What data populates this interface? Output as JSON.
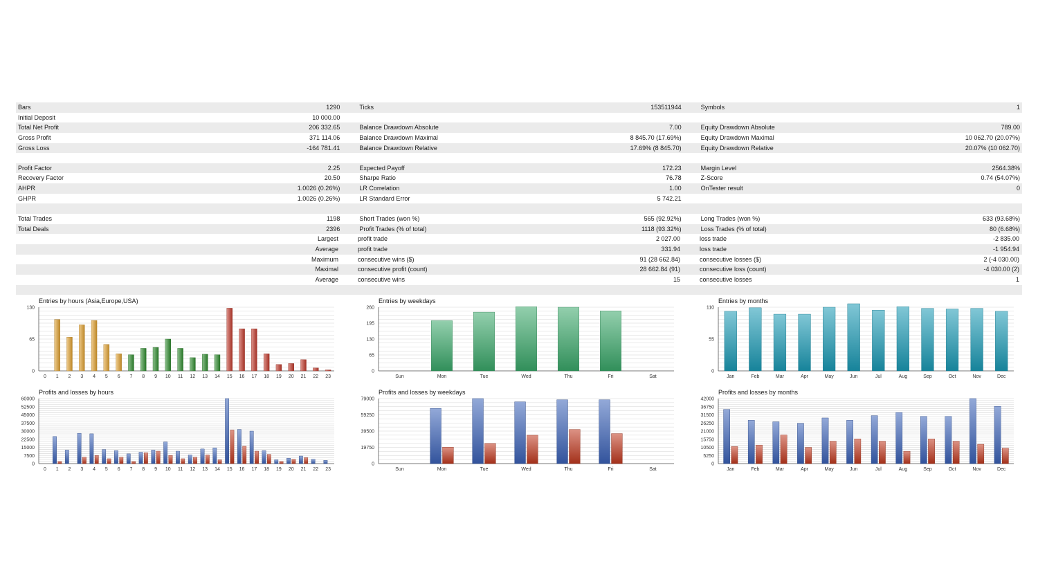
{
  "stats": [
    [
      [
        "Bars",
        "1290"
      ],
      [
        "Ticks",
        "153511944"
      ],
      [
        "Symbols",
        "1"
      ]
    ],
    [
      [
        "Initial Deposit",
        "10 000.00"
      ],
      [
        "",
        ""
      ],
      [
        "",
        ""
      ]
    ],
    [
      [
        "Total Net Profit",
        "206 332.65"
      ],
      [
        "Balance Drawdown Absolute",
        "7.00"
      ],
      [
        "Equity Drawdown Absolute",
        "789.00"
      ]
    ],
    [
      [
        "Gross Profit",
        "371 114.06"
      ],
      [
        "Balance Drawdown Maximal",
        "8 845.70 (17.69%)"
      ],
      [
        "Equity Drawdown Maximal",
        "10 062.70 (20.07%)"
      ]
    ],
    [
      [
        "Gross Loss",
        "-164 781.41"
      ],
      [
        "Balance Drawdown Relative",
        "17.69% (8 845.70)"
      ],
      [
        "Equity Drawdown Relative",
        "20.07% (10 062.70)"
      ]
    ],
    [
      [
        "",
        ""
      ],
      [
        "",
        ""
      ],
      [
        "",
        ""
      ]
    ],
    [
      [
        "Profit Factor",
        "2.25"
      ],
      [
        "Expected Payoff",
        "172.23"
      ],
      [
        "Margin Level",
        "2564.38%"
      ]
    ],
    [
      [
        "Recovery Factor",
        "20.50"
      ],
      [
        "Sharpe Ratio",
        "76.78"
      ],
      [
        "Z-Score",
        "0.74 (54.07%)"
      ]
    ],
    [
      [
        "AHPR",
        "1.0026 (0.26%)"
      ],
      [
        "LR Correlation",
        "1.00"
      ],
      [
        "OnTester result",
        "0"
      ]
    ],
    [
      [
        "GHPR",
        "1.0026 (0.26%)"
      ],
      [
        "LR Standard Error",
        "5 742.21"
      ],
      [
        "",
        ""
      ]
    ],
    [
      [
        "",
        ""
      ],
      [
        "",
        ""
      ],
      [
        "",
        ""
      ]
    ],
    [
      [
        "Total Trades",
        "1198"
      ],
      [
        "Short Trades (won %)",
        "565 (92.92%)"
      ],
      [
        "Long Trades (won %)",
        "633 (93.68%)"
      ]
    ],
    [
      [
        "Total Deals",
        "2396"
      ],
      [
        "Profit Trades (% of total)",
        "1118 (93.32%)"
      ],
      [
        "Loss Trades (% of total)",
        "80 (6.68%)"
      ]
    ],
    [
      [
        "",
        "Largest"
      ],
      [
        "profit trade",
        "2 027.00"
      ],
      [
        "loss trade",
        "-2 835.00"
      ]
    ],
    [
      [
        "",
        "Average"
      ],
      [
        "profit trade",
        "331.94"
      ],
      [
        "loss trade",
        "-1 954.94"
      ]
    ],
    [
      [
        "",
        "Maximum"
      ],
      [
        "consecutive wins ($)",
        "91 (28 662.84)"
      ],
      [
        "consecutive losses ($)",
        "2 (-4 030.00)"
      ]
    ],
    [
      [
        "",
        "Maximal"
      ],
      [
        "consecutive profit (count)",
        "28 662.84 (91)"
      ],
      [
        "consecutive loss (count)",
        "-4 030.00 (2)"
      ]
    ],
    [
      [
        "",
        "Average"
      ],
      [
        "consecutive wins",
        "15"
      ],
      [
        "consecutive losses",
        "1"
      ]
    ],
    [
      [
        "",
        ""
      ],
      [
        "",
        ""
      ],
      [
        "",
        ""
      ]
    ]
  ],
  "colors": {
    "row_alt": "#ebebeb",
    "hours_asia": "#e0a030",
    "hours_europe": "#2e8b2e",
    "hours_usa": "#c0392b",
    "weekdays": "#3aa86a",
    "months": "#1a9ab5",
    "profit": "#3b62b8",
    "loss": "#c0391f"
  },
  "chart_data": [
    {
      "id": "entries_hours",
      "type": "bar",
      "title": "Entries by hours (Asia,Europe,USA)",
      "categories": [
        "0",
        "1",
        "2",
        "3",
        "4",
        "5",
        "6",
        "7",
        "8",
        "9",
        "10",
        "11",
        "12",
        "13",
        "14",
        "15",
        "16",
        "17",
        "18",
        "19",
        "20",
        "21",
        "22",
        "23"
      ],
      "values": [
        0,
        105,
        69,
        94,
        103,
        54,
        35,
        33,
        46,
        48,
        65,
        46,
        27,
        34,
        33,
        128,
        86,
        86,
        35,
        13,
        15,
        23,
        6,
        2
      ],
      "ylim": [
        0,
        130
      ],
      "yticks": [
        "0",
        "65",
        "130"
      ]
    },
    {
      "id": "entries_weekdays",
      "type": "bar",
      "title": "Entries by weekdays",
      "categories": [
        "Sun",
        "Mon",
        "Tue",
        "Wed",
        "Thu",
        "Fri",
        "Sat"
      ],
      "values": [
        0,
        205,
        240,
        262,
        260,
        245,
        0
      ],
      "ylim": [
        0,
        260
      ],
      "yticks": [
        "0",
        "65",
        "130",
        "195",
        "260"
      ]
    },
    {
      "id": "entries_months",
      "type": "bar",
      "title": "Entries by months",
      "categories": [
        "Jan",
        "Feb",
        "Mar",
        "Apr",
        "May",
        "Jun",
        "Jul",
        "Aug",
        "Sep",
        "Oct",
        "Nov",
        "Dec"
      ],
      "values": [
        103,
        109,
        98,
        98,
        110,
        116,
        105,
        111,
        108,
        107,
        108,
        103
      ],
      "ylim": [
        0,
        110
      ],
      "yticks": [
        "0",
        "55",
        "110"
      ]
    },
    {
      "id": "pl_hours",
      "type": "bar",
      "title": "Profits and losses by hours",
      "categories": [
        "0",
        "1",
        "2",
        "3",
        "4",
        "5",
        "6",
        "7",
        "8",
        "9",
        "10",
        "11",
        "12",
        "13",
        "14",
        "15",
        "16",
        "17",
        "18",
        "19",
        "20",
        "21",
        "22",
        "23"
      ],
      "series": [
        {
          "name": "Profit",
          "values": [
            0,
            25000,
            12500,
            28000,
            27500,
            13000,
            12000,
            9000,
            10500,
            12500,
            20000,
            11500,
            8000,
            13500,
            14500,
            60000,
            31500,
            30000,
            12000,
            3500,
            5000,
            7000,
            4000,
            3000
          ]
        },
        {
          "name": "Loss",
          "values": [
            0,
            2000,
            0,
            6000,
            7500,
            4500,
            6000,
            2000,
            10000,
            11500,
            7500,
            4500,
            6000,
            8000,
            3500,
            31000,
            16000,
            11500,
            8500,
            2000,
            4000,
            5500,
            0,
            0
          ]
        }
      ],
      "ylim": [
        0,
        60000
      ],
      "yticks": [
        "0",
        "7500",
        "15000",
        "22500",
        "30000",
        "37500",
        "45000",
        "52500",
        "60000"
      ]
    },
    {
      "id": "pl_weekdays",
      "type": "bar",
      "title": "Profits and losses by weekdays",
      "categories": [
        "Sun",
        "Mon",
        "Tue",
        "Wed",
        "Thu",
        "Fri",
        "Sat"
      ],
      "series": [
        {
          "name": "Profit",
          "values": [
            0,
            67000,
            79000,
            75000,
            77500,
            77500,
            0
          ]
        },
        {
          "name": "Loss",
          "values": [
            0,
            20000,
            24500,
            34500,
            41500,
            36500,
            0
          ]
        }
      ],
      "ylim": [
        0,
        79000
      ],
      "yticks": [
        "0",
        "19750",
        "39500",
        "59250",
        "79000"
      ]
    },
    {
      "id": "pl_months",
      "type": "bar",
      "title": "Profits and losses by months",
      "categories": [
        "Jan",
        "Feb",
        "Mar",
        "Apr",
        "May",
        "Jun",
        "Jul",
        "Aug",
        "Sep",
        "Oct",
        "Nov",
        "Dec"
      ],
      "series": [
        {
          "name": "Profit",
          "values": [
            35000,
            28000,
            27000,
            26000,
            29500,
            28000,
            31000,
            33000,
            30500,
            30500,
            42000,
            37000
          ]
        },
        {
          "name": "Loss",
          "values": [
            11000,
            12000,
            18500,
            10500,
            14500,
            16000,
            14500,
            8000,
            16000,
            14500,
            12500,
            10000
          ]
        }
      ],
      "ylim": [
        0,
        42000
      ],
      "yticks": [
        "0",
        "5250",
        "10500",
        "15750",
        "21000",
        "26250",
        "31500",
        "36750",
        "42000"
      ]
    }
  ]
}
